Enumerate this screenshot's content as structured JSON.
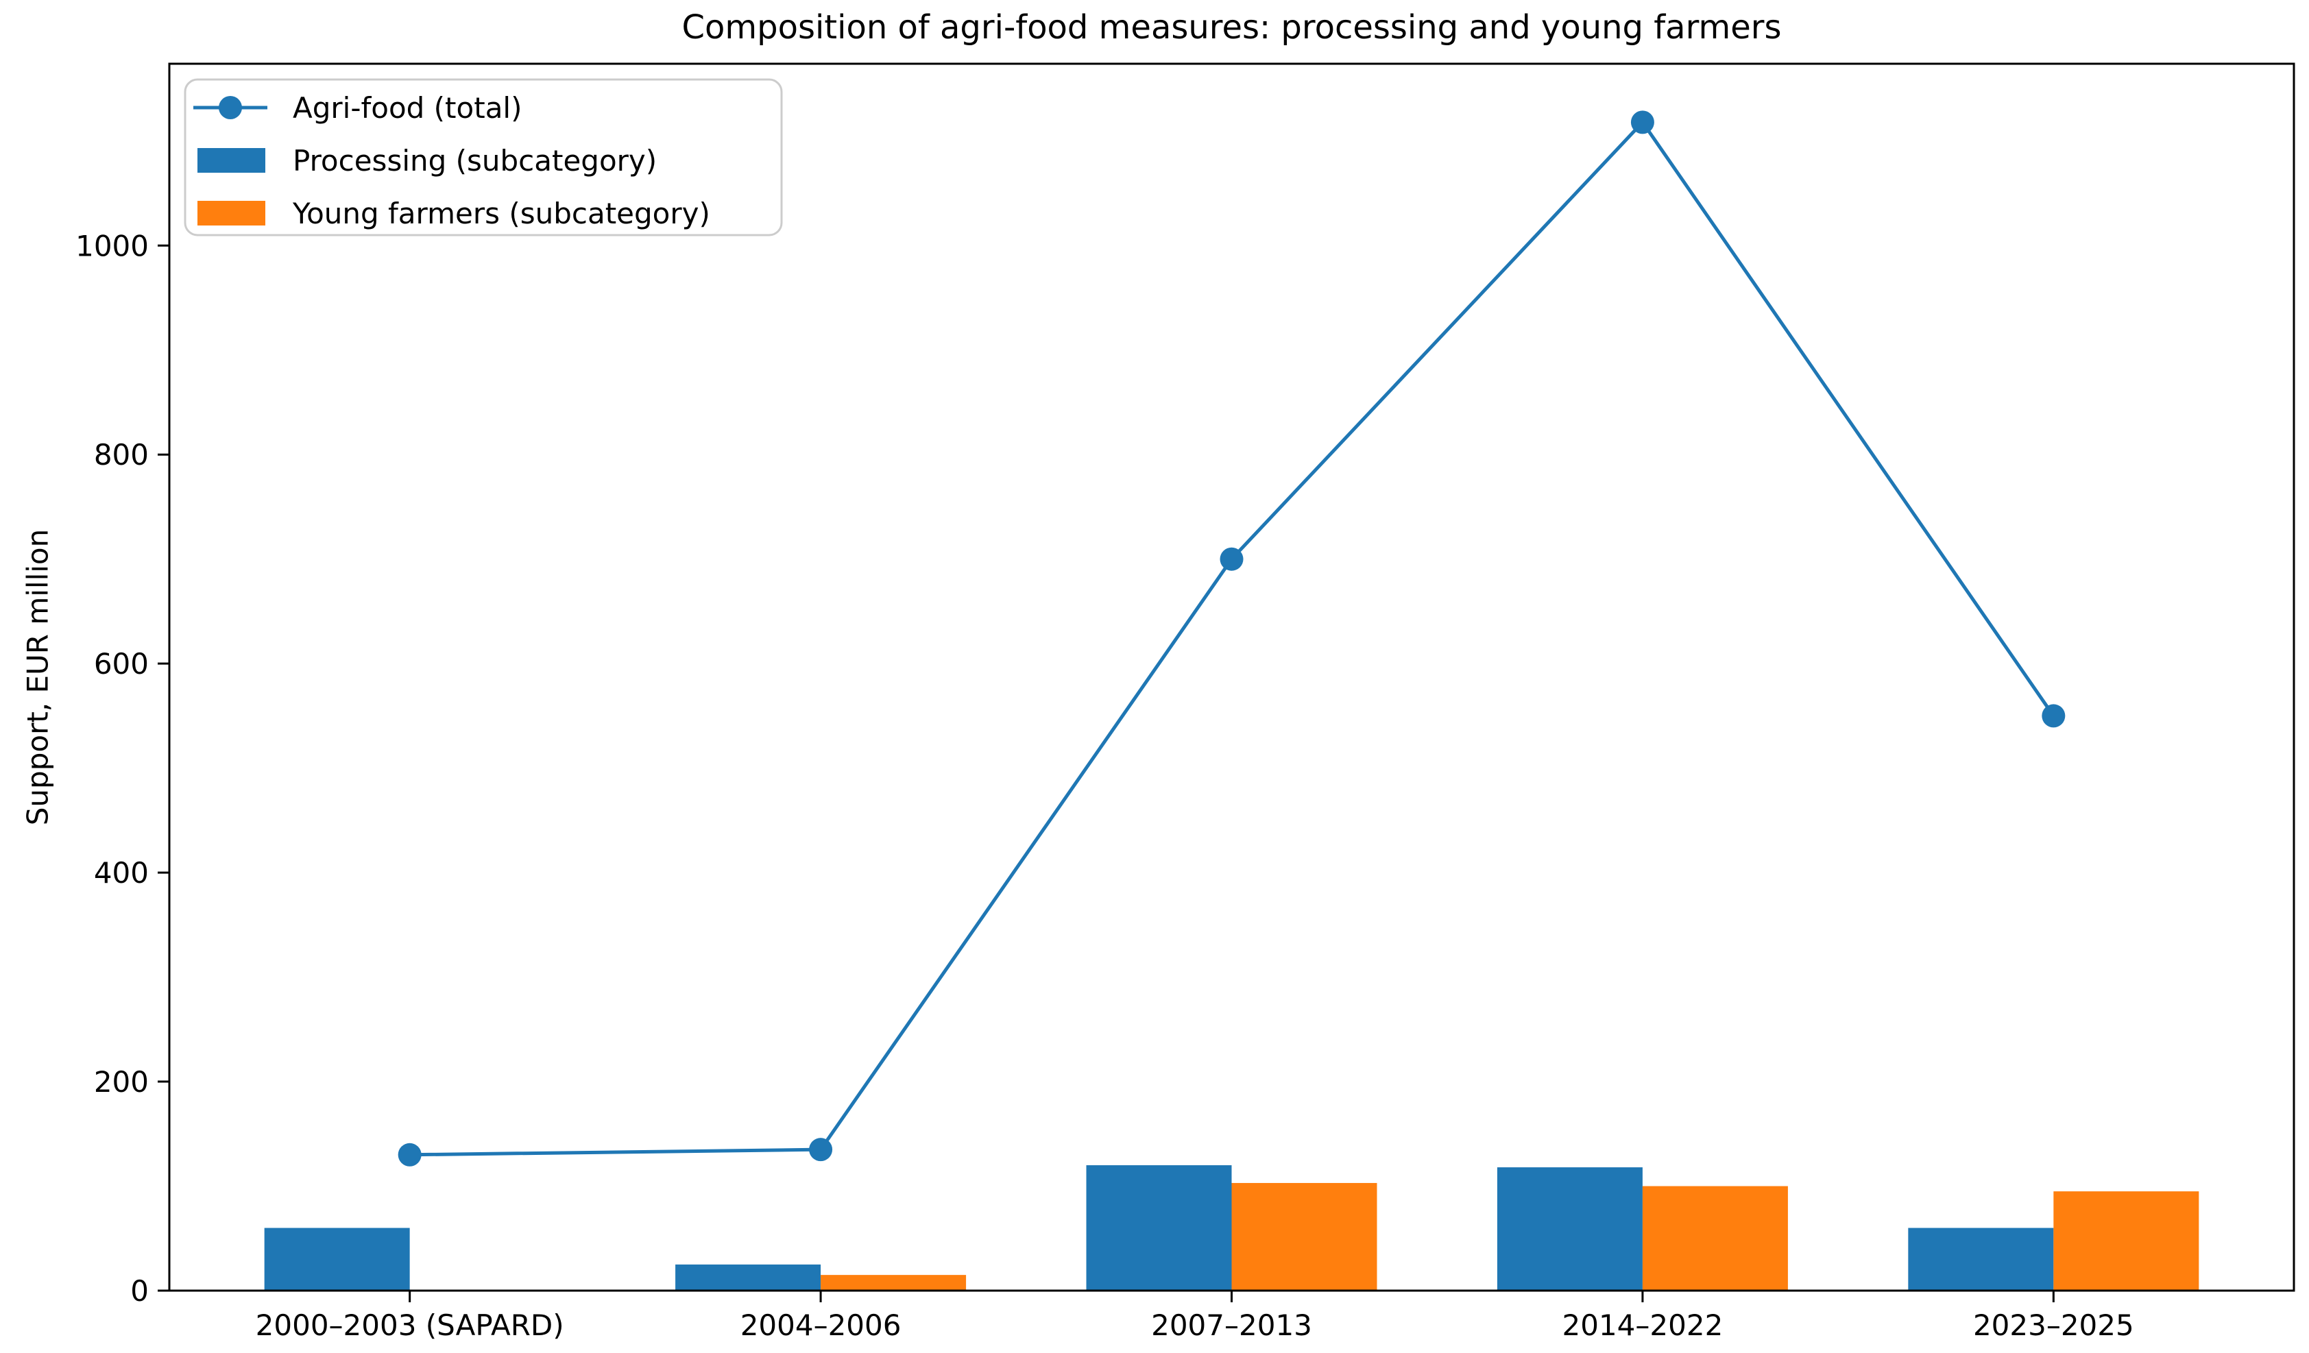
{
  "figure": {
    "background": "#ffffff",
    "text_color": "#000000",
    "spine_color": "#000000",
    "legend_border_color": "#cccccc"
  },
  "chart_data": {
    "type": "line+bar",
    "title": "Composition of agri-food measures: processing and young farmers",
    "xlabel": "",
    "ylabel": "Support, EUR million",
    "categories": [
      "2000–2003 (SAPARD)",
      "2004–2006",
      "2007–2013",
      "2014–2022",
      "2023–2025"
    ],
    "series": [
      {
        "name": "Agri-food (total)",
        "type": "line",
        "marker": "circle",
        "color": "#1f77b4",
        "values": [
          130,
          135,
          700,
          1118,
          550
        ]
      },
      {
        "name": "Processing (subcategory)",
        "type": "bar",
        "color": "#1f77b4",
        "values": [
          60,
          25,
          120,
          118,
          60
        ]
      },
      {
        "name": "Young farmers (subcategory)",
        "type": "bar",
        "color": "#ff7f0e",
        "values": [
          0,
          15,
          103,
          100,
          95
        ]
      }
    ],
    "yticks": [
      0,
      200,
      400,
      600,
      800,
      1000
    ],
    "ylim": [
      0,
      1174
    ],
    "grid": false,
    "legend_position": "upper left"
  }
}
